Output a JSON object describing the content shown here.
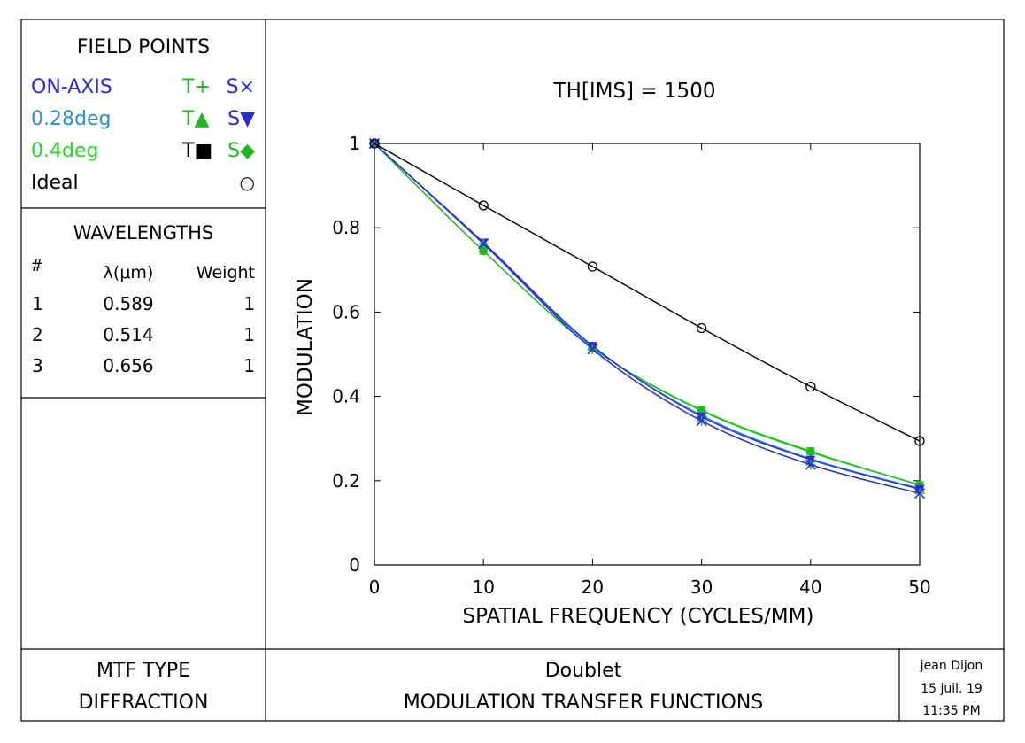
{
  "field_panel": {
    "title": "FIELD POINTS",
    "rows": [
      {
        "label": "ON-AXIS",
        "t": "T+",
        "s": "S×",
        "color": "#2a2ad8",
        "t_color": "#1fb81f",
        "s_color": "#2a2ad8"
      },
      {
        "label": "0.28deg",
        "t": "T▲",
        "s": "S▼",
        "color": "#2a8fd8",
        "t_color": "#1fb81f",
        "s_color": "#2a2ad8"
      },
      {
        "label": "0.4deg",
        "t": "T■",
        "s": "S◆",
        "color": "#28d828",
        "t_color": "#000000",
        "s_color": "#1fb81f"
      },
      {
        "label": "Ideal",
        "t": "",
        "s": "○",
        "color": "#000000",
        "t_color": "#000000",
        "s_color": "#000000"
      }
    ]
  },
  "wavelength_panel": {
    "title": "WAVELENGTHS",
    "headers": [
      "#",
      "λ(μm)",
      "Weight"
    ],
    "rows": [
      [
        "1",
        "0.589",
        "1"
      ],
      [
        "2",
        "0.514",
        "1"
      ],
      [
        "3",
        "0.656",
        "1"
      ]
    ]
  },
  "footer": {
    "mtf_type_label": "MTF TYPE",
    "mtf_type_value": "DIFFRACTION",
    "lens_name": "Doublet",
    "plot_title": "MODULATION TRANSFER FUNCTIONS",
    "user": "jean Dijon",
    "date": "15 juil. 19",
    "time": "11:35 PM"
  },
  "chart_data": {
    "type": "line",
    "title": "TH[IMS] = 1500",
    "xlabel": "SPATIAL FREQUENCY (CYCLES/MM)",
    "ylabel": "MODULATION",
    "xlim": [
      0,
      50
    ],
    "ylim": [
      0,
      1
    ],
    "xticks": [
      0,
      10,
      20,
      30,
      40,
      50
    ],
    "yticks": [
      0,
      0.2,
      0.4,
      0.6,
      0.8,
      1
    ],
    "ytick_labels": [
      "0",
      "0.2",
      "0.4",
      "0.6",
      "0.8",
      "1"
    ],
    "grid": false,
    "x": [
      0,
      10,
      20,
      30,
      40,
      50
    ],
    "series": [
      {
        "name": "ON-AXIS T",
        "color": "#1fb81f",
        "marker": "plus",
        "values": [
          1.0,
          0.762,
          0.512,
          0.342,
          0.238,
          0.17
        ]
      },
      {
        "name": "ON-AXIS S",
        "color": "#2a2ad8",
        "marker": "x",
        "values": [
          1.0,
          0.762,
          0.512,
          0.342,
          0.238,
          0.17
        ]
      },
      {
        "name": "0.28deg T",
        "color": "#2a8fd8",
        "marker": "triangle-up",
        "values": [
          1.0,
          0.763,
          0.518,
          0.355,
          0.252,
          0.182
        ]
      },
      {
        "name": "0.28deg S",
        "color": "#2a2ad8",
        "marker": "triangle-down",
        "values": [
          1.0,
          0.765,
          0.52,
          0.352,
          0.25,
          0.18
        ]
      },
      {
        "name": "0.4deg T",
        "color": "#28d828",
        "marker": "square",
        "values": [
          1.0,
          0.745,
          0.515,
          0.368,
          0.27,
          0.19
        ]
      },
      {
        "name": "0.4deg S",
        "color": "#1fb81f",
        "marker": "diamond",
        "values": [
          1.0,
          0.745,
          0.515,
          0.366,
          0.268,
          0.19
        ]
      },
      {
        "name": "Ideal",
        "color": "#000000",
        "marker": "circle",
        "values": [
          1.0,
          0.853,
          0.708,
          0.562,
          0.423,
          0.294
        ]
      }
    ]
  }
}
